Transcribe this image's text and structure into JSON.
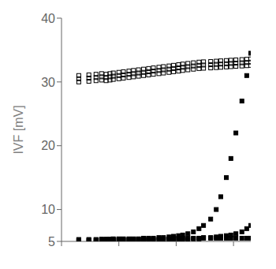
{
  "chart_data": {
    "type": "scatter",
    "ylabel": "IVF [mV]",
    "log": "x",
    "grid": false,
    "tick_labels": "y",
    "xlim": [
      1,
      2000
    ],
    "xticks": [
      1,
      10,
      100,
      1000
    ],
    "ylim": [
      5,
      40
    ],
    "yticks": [
      5,
      10,
      20,
      30,
      40
    ],
    "x": [
      2,
      3,
      4,
      5,
      6,
      7,
      8,
      10,
      12,
      15,
      18,
      22,
      27,
      33,
      40,
      50,
      60,
      75,
      90,
      110,
      130,
      160,
      200,
      250,
      300,
      400,
      500,
      600,
      750,
      900,
      1100,
      1400,
      1700,
      2000
    ],
    "series": [
      {
        "marker": "open_square",
        "color": "#000000",
        "values": [
          31.0,
          31.1,
          31.2,
          31.3,
          31.2,
          31.3,
          31.4,
          31.5,
          31.6,
          31.7,
          31.8,
          31.9,
          32.0,
          32.1,
          32.2,
          32.3,
          32.4,
          32.5,
          32.6,
          32.7,
          32.8,
          32.9,
          33.0,
          33.1,
          33.15,
          33.2,
          33.25,
          33.3,
          33.35,
          33.4,
          33.45,
          33.5,
          33.55,
          33.6
        ]
      },
      {
        "marker": "open_square",
        "color": "#000000",
        "values": [
          30.5,
          30.6,
          30.7,
          30.8,
          30.7,
          30.8,
          30.9,
          31.0,
          31.1,
          31.2,
          31.3,
          31.4,
          31.5,
          31.6,
          31.7,
          31.8,
          31.9,
          32.0,
          32.1,
          32.2,
          32.3,
          32.4,
          32.5,
          32.6,
          32.65,
          32.7,
          32.75,
          32.8,
          32.85,
          32.9,
          32.95,
          33.0,
          33.05,
          33.1
        ]
      },
      {
        "marker": "open_square",
        "color": "#000000",
        "values": [
          30.0,
          30.1,
          30.2,
          30.3,
          30.2,
          30.3,
          30.4,
          30.5,
          30.6,
          30.7,
          30.8,
          30.9,
          31.0,
          31.1,
          31.2,
          31.3,
          31.4,
          31.5,
          31.6,
          31.7,
          31.8,
          31.9,
          32.0,
          32.1,
          32.15,
          32.2,
          32.25,
          32.3,
          32.35,
          32.4,
          32.45,
          32.5,
          32.55,
          32.6
        ]
      },
      {
        "marker": "square",
        "color": "#000000",
        "values": [
          5.1,
          5.1,
          5.1,
          5.15,
          5.15,
          5.15,
          5.2,
          5.2,
          5.2,
          5.2,
          5.2,
          5.2,
          5.2,
          5.2,
          5.2,
          5.2,
          5.3,
          5.3,
          5.3,
          5.3,
          5.3,
          5.3,
          5.4,
          5.4,
          5.5,
          5.5,
          5.5,
          5.5,
          5.5,
          5.5,
          5.5,
          5.5,
          5.5,
          5.5
        ]
      },
      {
        "marker": "square",
        "color": "#000000",
        "values": [
          5.2,
          5.2,
          5.2,
          5.25,
          5.25,
          5.25,
          5.3,
          5.3,
          5.3,
          5.3,
          5.3,
          5.35,
          5.35,
          5.35,
          5.4,
          5.4,
          5.4,
          5.4,
          5.5,
          5.5,
          5.5,
          5.5,
          5.5,
          5.5,
          5.6,
          5.6,
          5.7,
          5.8,
          5.9,
          6.0,
          6.2,
          6.5,
          7.0,
          7.5
        ]
      },
      {
        "marker": "square",
        "color": "#000000",
        "values": [
          5.3,
          5.3,
          5.3,
          5.35,
          5.35,
          5.35,
          5.4,
          5.4,
          5.4,
          5.4,
          5.4,
          5.4,
          5.5,
          5.5,
          5.5,
          5.6,
          5.6,
          5.7,
          5.8,
          5.9,
          6.0,
          6.2,
          6.5,
          7.0,
          7.5,
          8.5,
          10.0,
          12.0,
          15.0,
          18.0,
          22.0,
          27.0,
          31.0,
          34.5
        ]
      }
    ]
  }
}
